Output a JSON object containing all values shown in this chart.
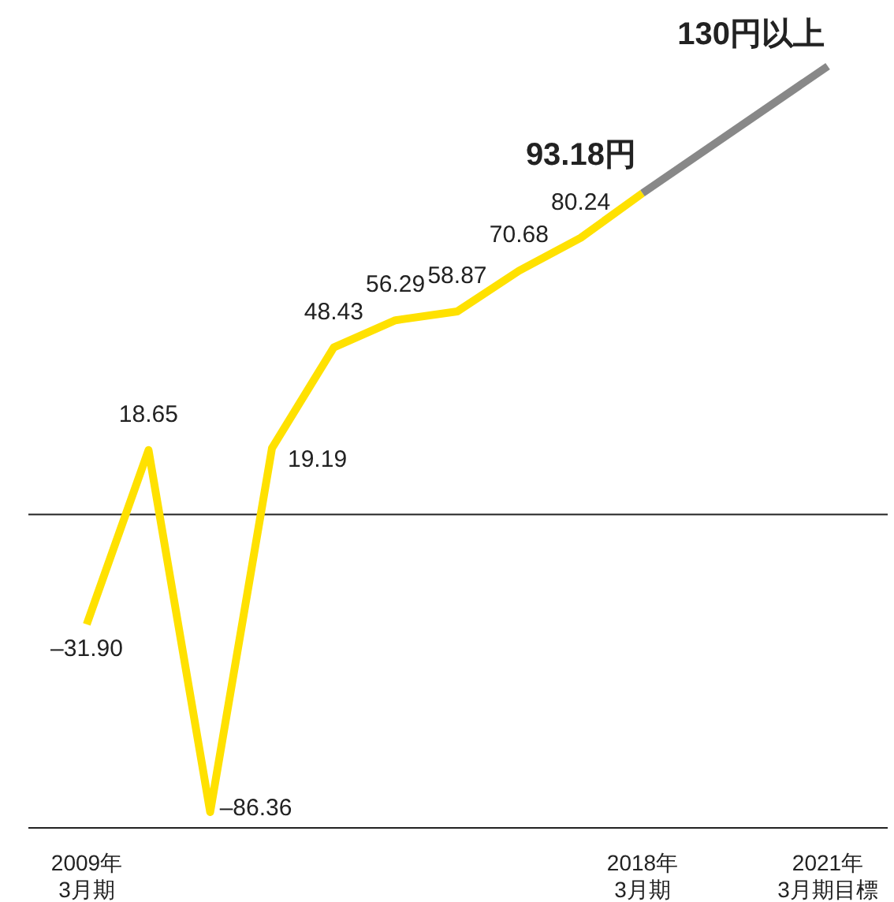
{
  "chart_data": {
    "type": "line",
    "categories": [
      "2009年\n3月期",
      null,
      null,
      null,
      null,
      null,
      null,
      null,
      null,
      "2018年\n3月期",
      null,
      null,
      "2021年\n3月期目標"
    ],
    "tick_labels": "x",
    "grid": false,
    "marker": "none",
    "line_style": "solid",
    "ref_lines": [
      {
        "axis": "y",
        "value": 0,
        "color": "#222222"
      }
    ],
    "series": [
      {
        "color": "#ffe100",
        "values": [
          -31.9,
          18.65,
          -86.36,
          19.19,
          48.43,
          56.29,
          58.87,
          70.68,
          80.24,
          93.18,
          null,
          null,
          null
        ],
        "value_labels": [
          "–31.90",
          "18.65",
          "–86.36",
          "19.19",
          "48.43",
          "56.29",
          "58.87",
          "70.68",
          "80.24",
          "93.18円",
          null,
          null,
          null
        ]
      },
      {
        "color": "#888888",
        "x": [
          "2018年\n3月期",
          "2021年\n3月期目標"
        ],
        "values": [
          93.18,
          130
        ],
        "value_labels": [
          null,
          "130円以上"
        ]
      }
    ]
  }
}
